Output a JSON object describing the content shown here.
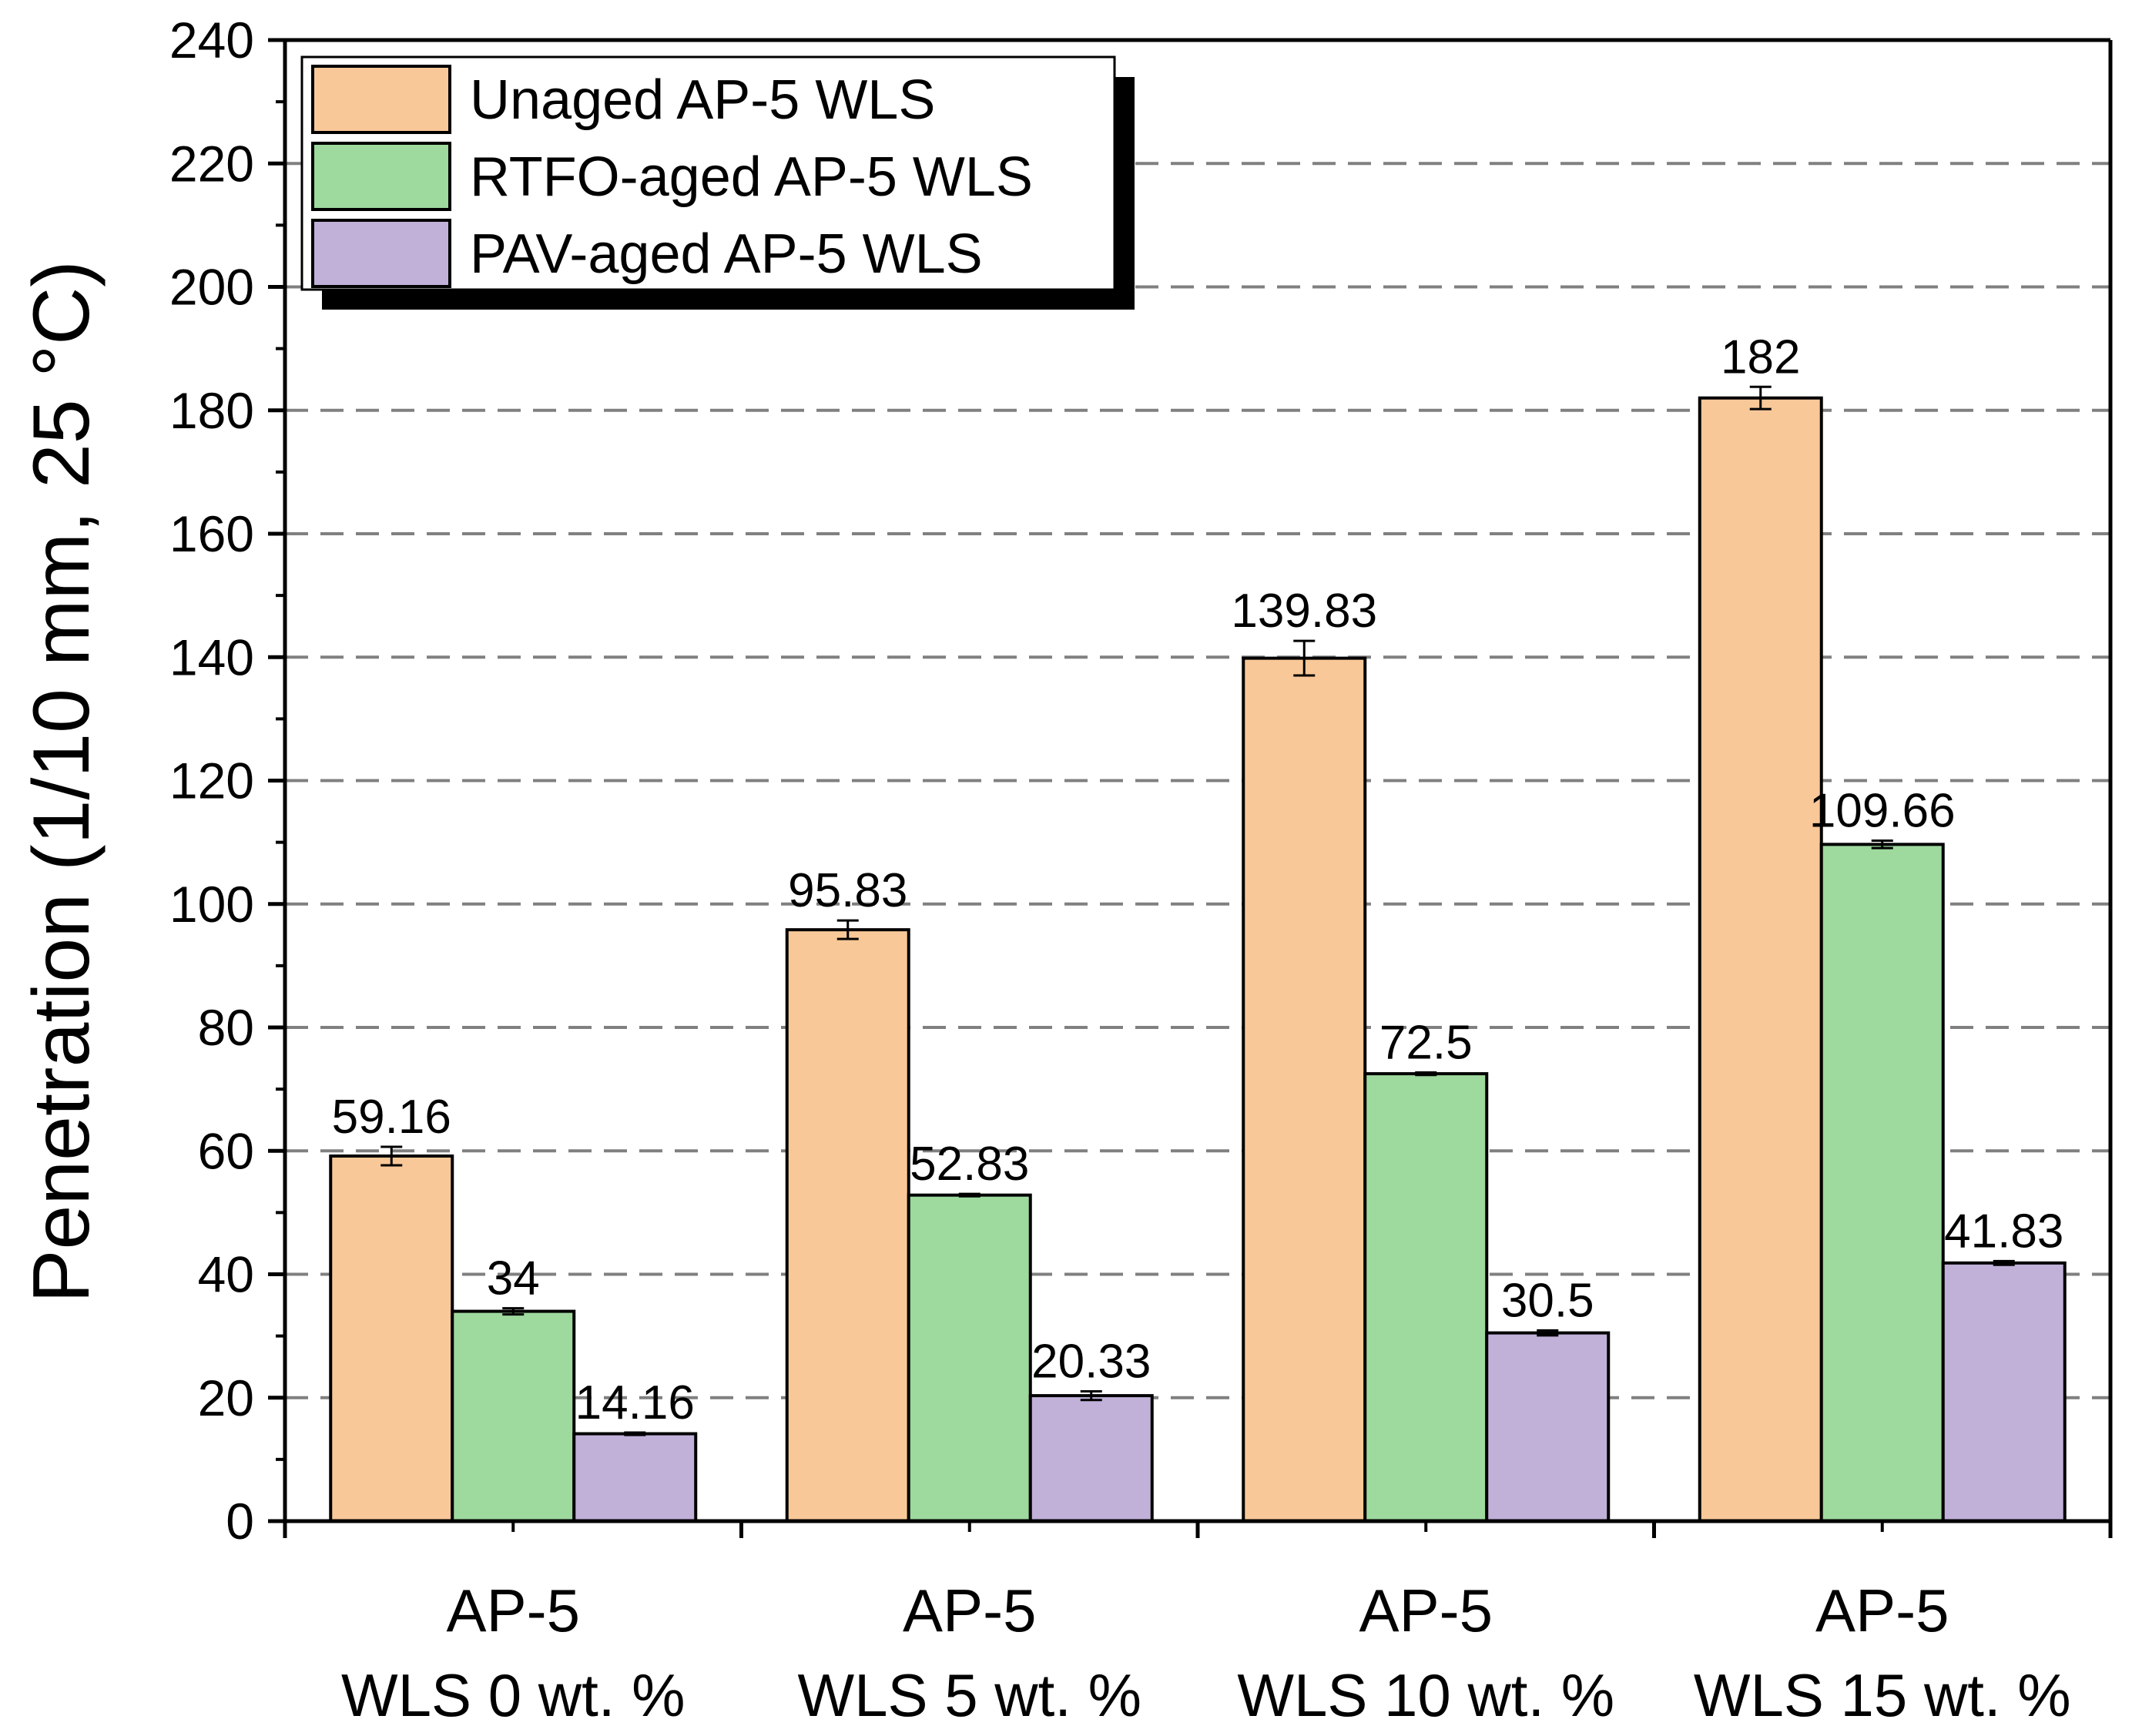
{
  "chart_data": {
    "type": "bar",
    "ylabel": "Penetration (1/10 mm, 25 °C)",
    "xlabel": "",
    "ylim": [
      0,
      240
    ],
    "yticks": [
      0,
      20,
      40,
      60,
      80,
      100,
      120,
      140,
      160,
      180,
      200,
      220,
      240
    ],
    "grid": "horizontal dashed",
    "legend_position": "top-left",
    "categories": [
      [
        "AP-5",
        "WLS 0 wt. %"
      ],
      [
        "AP-5",
        "WLS 5 wt. %"
      ],
      [
        "AP-5",
        "WLS 10 wt. %"
      ],
      [
        "AP-5",
        "WLS 15 wt. %"
      ]
    ],
    "series": [
      {
        "name": "Unaged AP-5 WLS",
        "color": "#f9c898",
        "values": [
          59.16,
          95.83,
          139.83,
          182
        ],
        "labels": [
          "59.16",
          "95.83",
          "139.83",
          "182"
        ],
        "errors": [
          1.5,
          1.5,
          2.8,
          1.8
        ]
      },
      {
        "name": "RTFO-aged AP-5 WLS",
        "color": "#9ed99e",
        "values": [
          34,
          52.83,
          72.5,
          109.66
        ],
        "labels": [
          "34",
          "52.83",
          "72.5",
          "109.66"
        ],
        "errors": [
          0.5,
          0.2,
          0.2,
          0.6
        ]
      },
      {
        "name": "PAV-aged AP-5 WLS",
        "color": "#c1b1d9",
        "values": [
          14.16,
          20.33,
          30.5,
          41.83
        ],
        "labels": [
          "14.16",
          "20.33",
          "30.5",
          "41.83"
        ],
        "errors": [
          0.2,
          0.7,
          0.4,
          0.3
        ]
      }
    ]
  }
}
